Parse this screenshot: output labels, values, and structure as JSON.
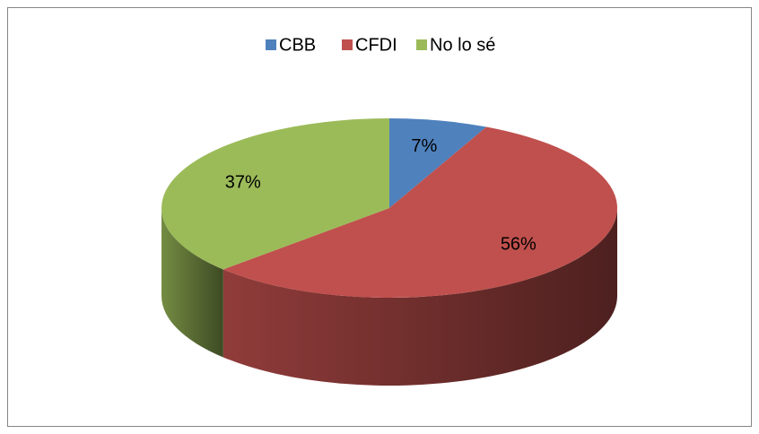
{
  "chart_data": {
    "type": "pie",
    "categories": [
      "CBB",
      "CFDI",
      "No lo sé"
    ],
    "values": [
      7,
      56,
      37
    ],
    "value_labels": [
      "7%",
      "56%",
      "37%"
    ],
    "colors": [
      "#4f81bd",
      "#c0504d",
      "#9bbb59"
    ],
    "legend": "top",
    "three_d": true
  }
}
